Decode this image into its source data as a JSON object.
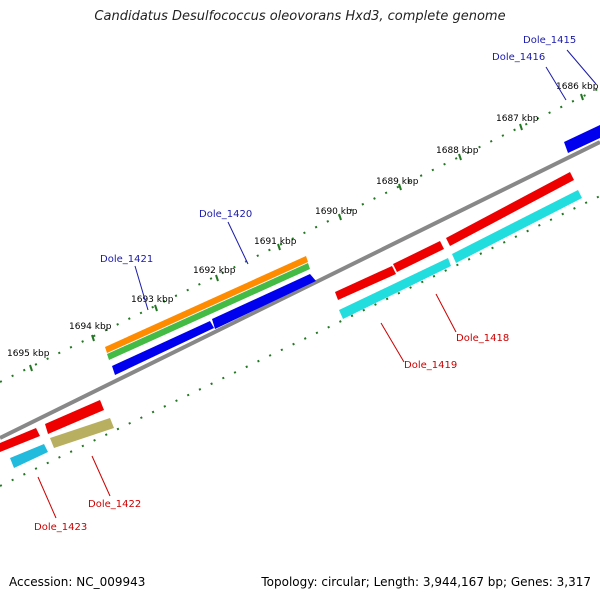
{
  "title": "Candidatus Desulfococcus oleovorans Hxd3, complete genome",
  "footer": {
    "accession": "Accession: NC_009943",
    "summary": "Topology: circular; Length: 3,944,167 bp; Genes: 3,317"
  },
  "ticks": [
    "1686 kbp",
    "1687 kbp",
    "1688 kbp",
    "1689 kbp",
    "1690 kbp",
    "1691 kbp",
    "1692 kbp",
    "1693 kbp",
    "1694 kbp",
    "1695 kbp"
  ],
  "gene_labels": {
    "top": [
      "Dole_1415",
      "Dole_1416",
      "Dole_1420",
      "Dole_1421"
    ],
    "bottom": [
      "Dole_1418",
      "Dole_1419",
      "Dole_1422",
      "Dole_1423"
    ]
  },
  "colors": {
    "forward_gene": "#0000ee",
    "reverse_gene": "#ee0000",
    "forward_label": "#1a1aaa",
    "reverse_label": "#cc0000",
    "cyan": "#22dddd",
    "orange": "#ff8c00",
    "green": "#44bb44",
    "olive": "#b8b060",
    "backbone": "#888888",
    "tick": "#227722"
  }
}
